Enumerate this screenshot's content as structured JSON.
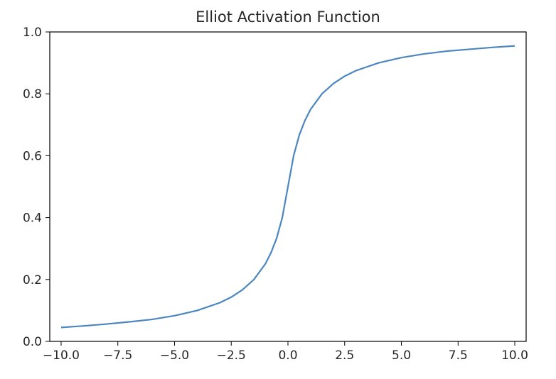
{
  "chart_data": {
    "type": "line",
    "title": "Elliot Activation Function",
    "xlabel": "",
    "ylabel": "",
    "xlim": [
      -10.5,
      10.5
    ],
    "ylim": [
      0.0,
      1.0
    ],
    "grid": false,
    "legend": "none",
    "x_ticks": [
      -10.0,
      -7.5,
      -5.0,
      -2.5,
      0.0,
      2.5,
      5.0,
      7.5,
      10.0
    ],
    "x_tick_labels": [
      "−10.0",
      "−7.5",
      "−5.0",
      "−2.5",
      "0.0",
      "2.5",
      "5.0",
      "7.5",
      "10.0"
    ],
    "y_ticks": [
      0.0,
      0.2,
      0.4,
      0.6,
      0.8,
      1.0
    ],
    "y_tick_labels": [
      "0.0",
      "0.2",
      "0.4",
      "0.6",
      "0.8",
      "1.0"
    ],
    "series": [
      {
        "color": "#4c86c0",
        "x": [
          -10,
          -9,
          -8,
          -7,
          -6,
          -5,
          -4,
          -3,
          -2.5,
          -2,
          -1.5,
          -1,
          -0.75,
          -0.5,
          -0.25,
          0,
          0.25,
          0.5,
          0.75,
          1,
          1.5,
          2,
          2.5,
          3,
          4,
          5,
          6,
          7,
          8,
          9,
          10
        ],
        "y": [
          0.045,
          0.05,
          0.056,
          0.063,
          0.071,
          0.083,
          0.1,
          0.125,
          0.143,
          0.167,
          0.2,
          0.25,
          0.286,
          0.333,
          0.4,
          0.5,
          0.6,
          0.667,
          0.714,
          0.75,
          0.8,
          0.833,
          0.857,
          0.875,
          0.9,
          0.917,
          0.929,
          0.938,
          0.944,
          0.95,
          0.955
        ]
      }
    ]
  }
}
